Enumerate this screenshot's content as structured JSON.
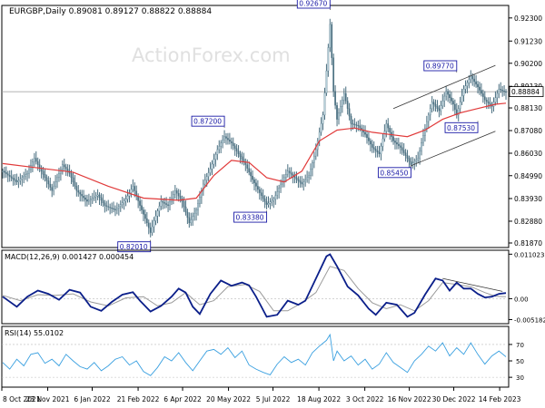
{
  "chart_data": [
    {
      "type": "candlestick",
      "panel": "price",
      "title": "EURGBP,Daily  0.89081 0.89127 0.88822 0.88884",
      "watermark": "ActionForex.com",
      "y_range": [
        0.8166,
        0.9288
      ],
      "y_ticks": [
        "0.92300",
        "0.91230",
        "0.90200",
        "0.89130",
        "0.88130",
        "0.87080",
        "0.86030",
        "0.84990",
        "0.83930",
        "0.82880",
        "0.81870"
      ],
      "y_tick_values": [
        0.923,
        0.9123,
        0.902,
        0.8913,
        0.8813,
        0.8708,
        0.8603,
        0.8499,
        0.8393,
        0.8288,
        0.8187
      ],
      "current_price": {
        "label": "0.88884",
        "value": 0.88884
      },
      "price_path": [
        [
          0,
          0.852
        ],
        [
          8,
          0.847
        ],
        [
          14,
          0.851
        ],
        [
          18,
          0.858
        ],
        [
          22,
          0.852
        ],
        [
          28,
          0.843
        ],
        [
          34,
          0.855
        ],
        [
          38,
          0.851
        ],
        [
          42,
          0.843
        ],
        [
          48,
          0.838
        ],
        [
          54,
          0.841
        ],
        [
          58,
          0.836
        ],
        [
          64,
          0.834
        ],
        [
          70,
          0.839
        ],
        [
          74,
          0.845
        ],
        [
          78,
          0.836
        ],
        [
          82,
          0.828
        ],
        [
          84,
          0.8235
        ],
        [
          86,
          0.829
        ],
        [
          90,
          0.838
        ],
        [
          94,
          0.836
        ],
        [
          98,
          0.843
        ],
        [
          102,
          0.838
        ],
        [
          106,
          0.828
        ],
        [
          110,
          0.834
        ],
        [
          114,
          0.846
        ],
        [
          118,
          0.853
        ],
        [
          122,
          0.862
        ],
        [
          126,
          0.868
        ],
        [
          130,
          0.865
        ],
        [
          134,
          0.86
        ],
        [
          138,
          0.855
        ],
        [
          142,
          0.848
        ],
        [
          146,
          0.842
        ],
        [
          150,
          0.8365
        ],
        [
          154,
          0.839
        ],
        [
          158,
          0.846
        ],
        [
          162,
          0.852
        ],
        [
          166,
          0.849
        ],
        [
          170,
          0.846
        ],
        [
          174,
          0.85
        ],
        [
          178,
          0.862
        ],
        [
          182,
          0.878
        ],
        [
          184,
          0.8985
        ],
        [
          186,
          0.92
        ],
        [
          188,
          0.889
        ],
        [
          190,
          0.876
        ],
        [
          194,
          0.888
        ],
        [
          198,
          0.874
        ],
        [
          202,
          0.873
        ],
        [
          206,
          0.869
        ],
        [
          210,
          0.863
        ],
        [
          214,
          0.86
        ],
        [
          218,
          0.874
        ],
        [
          222,
          0.866
        ],
        [
          226,
          0.863
        ],
        [
          230,
          0.858
        ],
        [
          232,
          0.855
        ],
        [
          236,
          0.858
        ],
        [
          240,
          0.872
        ],
        [
          244,
          0.884
        ],
        [
          248,
          0.88
        ],
        [
          252,
          0.889
        ],
        [
          256,
          0.883
        ],
        [
          258,
          0.878
        ],
        [
          262,
          0.89
        ],
        [
          266,
          0.896
        ],
        [
          270,
          0.891
        ],
        [
          274,
          0.885
        ],
        [
          278,
          0.882
        ],
        [
          282,
          0.89
        ],
        [
          286,
          0.8885
        ]
      ],
      "moving_average": [
        [
          0,
          0.8555
        ],
        [
          20,
          0.8535
        ],
        [
          40,
          0.8515
        ],
        [
          60,
          0.845
        ],
        [
          80,
          0.8395
        ],
        [
          100,
          0.8385
        ],
        [
          110,
          0.8395
        ],
        [
          120,
          0.85
        ],
        [
          130,
          0.857
        ],
        [
          140,
          0.856
        ],
        [
          150,
          0.849
        ],
        [
          160,
          0.847
        ],
        [
          170,
          0.852
        ],
        [
          180,
          0.866
        ],
        [
          190,
          0.871
        ],
        [
          200,
          0.872
        ],
        [
          210,
          0.87
        ],
        [
          220,
          0.869
        ],
        [
          230,
          0.868
        ],
        [
          240,
          0.871
        ],
        [
          250,
          0.876
        ],
        [
          260,
          0.879
        ],
        [
          270,
          0.881
        ],
        [
          280,
          0.883
        ],
        [
          286,
          0.8835
        ]
      ],
      "annotations": [
        {
          "label": "0.82010",
          "value": 0.8201,
          "index": 84
        },
        {
          "label": "0.87200",
          "value": 0.872,
          "index": 126
        },
        {
          "label": "0.83380",
          "value": 0.8338,
          "index": 150
        },
        {
          "label": "0.92670",
          "value": 0.9267,
          "index": 186
        },
        {
          "label": "0.85450",
          "value": 0.8545,
          "index": 232
        },
        {
          "label": "0.89770",
          "value": 0.8977,
          "index": 258
        },
        {
          "label": "0.87530",
          "value": 0.8753,
          "index": 270
        }
      ],
      "channel": {
        "upper": [
          [
            222,
            0.881
          ],
          [
            280,
            0.901
          ]
        ],
        "lower": [
          [
            232,
            0.8545
          ],
          [
            280,
            0.8705
          ]
        ]
      }
    },
    {
      "type": "line",
      "panel": "macd",
      "title": "MACD(12,26,9) 0.001427 0.000454",
      "y_range": [
        -0.0062,
        0.012
      ],
      "y_ticks": [
        "0.011023",
        "0.00",
        "-0.005182"
      ],
      "y_tick_values": [
        0.011023,
        0.0,
        -0.005182
      ],
      "macd": [
        [
          0,
          0.0005
        ],
        [
          8,
          -0.002
        ],
        [
          14,
          0.0005
        ],
        [
          20,
          0.002
        ],
        [
          26,
          0.0012
        ],
        [
          32,
          -0.0003
        ],
        [
          38,
          0.0022
        ],
        [
          44,
          0.0015
        ],
        [
          50,
          -0.002
        ],
        [
          56,
          -0.003
        ],
        [
          62,
          -0.0008
        ],
        [
          68,
          0.001
        ],
        [
          74,
          0.0016
        ],
        [
          78,
          -0.0005
        ],
        [
          84,
          -0.0032
        ],
        [
          90,
          -0.0018
        ],
        [
          96,
          0.0005
        ],
        [
          100,
          0.0025
        ],
        [
          104,
          0.0015
        ],
        [
          108,
          -0.002
        ],
        [
          112,
          -0.0038
        ],
        [
          118,
          0.0012
        ],
        [
          124,
          0.0045
        ],
        [
          130,
          0.0032
        ],
        [
          136,
          0.004
        ],
        [
          140,
          0.0033
        ],
        [
          144,
          0.0005
        ],
        [
          150,
          -0.0045
        ],
        [
          156,
          -0.004
        ],
        [
          162,
          -0.0005
        ],
        [
          168,
          -0.0015
        ],
        [
          172,
          -0.0005
        ],
        [
          178,
          0.005
        ],
        [
          184,
          0.0105
        ],
        [
          186,
          0.011
        ],
        [
          190,
          0.008
        ],
        [
          196,
          0.003
        ],
        [
          202,
          0.0008
        ],
        [
          208,
          -0.0025
        ],
        [
          212,
          -0.004
        ],
        [
          218,
          -0.001
        ],
        [
          224,
          -0.0015
        ],
        [
          230,
          -0.0045
        ],
        [
          234,
          -0.0035
        ],
        [
          240,
          0.001
        ],
        [
          246,
          0.005
        ],
        [
          250,
          0.0045
        ],
        [
          254,
          0.002
        ],
        [
          258,
          0.004
        ],
        [
          262,
          0.0025
        ],
        [
          266,
          0.0025
        ],
        [
          270,
          0.0012
        ],
        [
          274,
          0.0003
        ],
        [
          278,
          0.0005
        ],
        [
          282,
          0.0012
        ],
        [
          286,
          0.0014
        ]
      ],
      "signal": [
        [
          0,
          0.0008
        ],
        [
          10,
          -0.0005
        ],
        [
          20,
          0.001
        ],
        [
          30,
          0.0008
        ],
        [
          40,
          0.0012
        ],
        [
          50,
          -0.0008
        ],
        [
          60,
          -0.0018
        ],
        [
          70,
          0.0002
        ],
        [
          80,
          0.0005
        ],
        [
          88,
          -0.0018
        ],
        [
          96,
          -0.001
        ],
        [
          104,
          0.0015
        ],
        [
          112,
          -0.0015
        ],
        [
          120,
          -0.0005
        ],
        [
          128,
          0.003
        ],
        [
          138,
          0.0035
        ],
        [
          146,
          0.0018
        ],
        [
          154,
          -0.003
        ],
        [
          162,
          -0.003
        ],
        [
          170,
          -0.001
        ],
        [
          178,
          0.0015
        ],
        [
          186,
          0.008
        ],
        [
          194,
          0.007
        ],
        [
          202,
          0.0025
        ],
        [
          210,
          -0.001
        ],
        [
          218,
          -0.0025
        ],
        [
          226,
          -0.0015
        ],
        [
          234,
          -0.003
        ],
        [
          242,
          -0.0005
        ],
        [
          250,
          0.004
        ],
        [
          258,
          0.0035
        ],
        [
          266,
          0.003
        ],
        [
          274,
          0.0015
        ],
        [
          280,
          0.0006
        ],
        [
          286,
          0.0005
        ]
      ],
      "divergence_line": [
        [
          250,
          0.005
        ],
        [
          284,
          0.0018
        ]
      ]
    },
    {
      "type": "line",
      "panel": "rsi",
      "title": "RSI(14) 55.0102",
      "y_range": [
        18,
        92
      ],
      "y_ticks": [
        "70",
        "50",
        "30"
      ],
      "y_tick_values": [
        70,
        50,
        30
      ],
      "levels": [
        70,
        30
      ],
      "rsi": [
        [
          0,
          48
        ],
        [
          4,
          40
        ],
        [
          8,
          52
        ],
        [
          12,
          44
        ],
        [
          16,
          58
        ],
        [
          20,
          60
        ],
        [
          24,
          47
        ],
        [
          28,
          52
        ],
        [
          32,
          44
        ],
        [
          36,
          58
        ],
        [
          40,
          50
        ],
        [
          44,
          43
        ],
        [
          48,
          40
        ],
        [
          52,
          48
        ],
        [
          56,
          38
        ],
        [
          60,
          44
        ],
        [
          64,
          52
        ],
        [
          68,
          55
        ],
        [
          72,
          45
        ],
        [
          76,
          50
        ],
        [
          80,
          37
        ],
        [
          84,
          32
        ],
        [
          88,
          42
        ],
        [
          92,
          55
        ],
        [
          96,
          50
        ],
        [
          100,
          60
        ],
        [
          104,
          48
        ],
        [
          108,
          38
        ],
        [
          112,
          50
        ],
        [
          116,
          62
        ],
        [
          120,
          64
        ],
        [
          124,
          58
        ],
        [
          128,
          66
        ],
        [
          132,
          54
        ],
        [
          136,
          62
        ],
        [
          140,
          45
        ],
        [
          144,
          40
        ],
        [
          148,
          36
        ],
        [
          152,
          33
        ],
        [
          156,
          46
        ],
        [
          160,
          55
        ],
        [
          164,
          48
        ],
        [
          168,
          52
        ],
        [
          172,
          45
        ],
        [
          176,
          60
        ],
        [
          180,
          68
        ],
        [
          184,
          75
        ],
        [
          186,
          82
        ],
        [
          188,
          50
        ],
        [
          190,
          62
        ],
        [
          194,
          50
        ],
        [
          198,
          56
        ],
        [
          202,
          45
        ],
        [
          206,
          52
        ],
        [
          210,
          40
        ],
        [
          214,
          46
        ],
        [
          218,
          60
        ],
        [
          222,
          48
        ],
        [
          226,
          42
        ],
        [
          230,
          36
        ],
        [
          234,
          50
        ],
        [
          238,
          58
        ],
        [
          242,
          68
        ],
        [
          246,
          62
        ],
        [
          250,
          72
        ],
        [
          254,
          56
        ],
        [
          258,
          66
        ],
        [
          262,
          58
        ],
        [
          266,
          72
        ],
        [
          270,
          58
        ],
        [
          274,
          46
        ],
        [
          278,
          56
        ],
        [
          282,
          62
        ],
        [
          286,
          55
        ]
      ]
    }
  ],
  "x_axis": {
    "labels": [
      "8 Oct 2021",
      "23 Nov 2021",
      "6 Jan 2022",
      "21 Feb 2022",
      "6 Apr 2022",
      "20 May 2022",
      "5 Jul 2022",
      "18 Aug 2022",
      "3 Oct 2022",
      "16 Nov 2022",
      "30 Dec 2022",
      "14 Feb 2023"
    ],
    "label_index": [
      0,
      32,
      63,
      95,
      126,
      158,
      189,
      221,
      253,
      284,
      315,
      347
    ]
  }
}
